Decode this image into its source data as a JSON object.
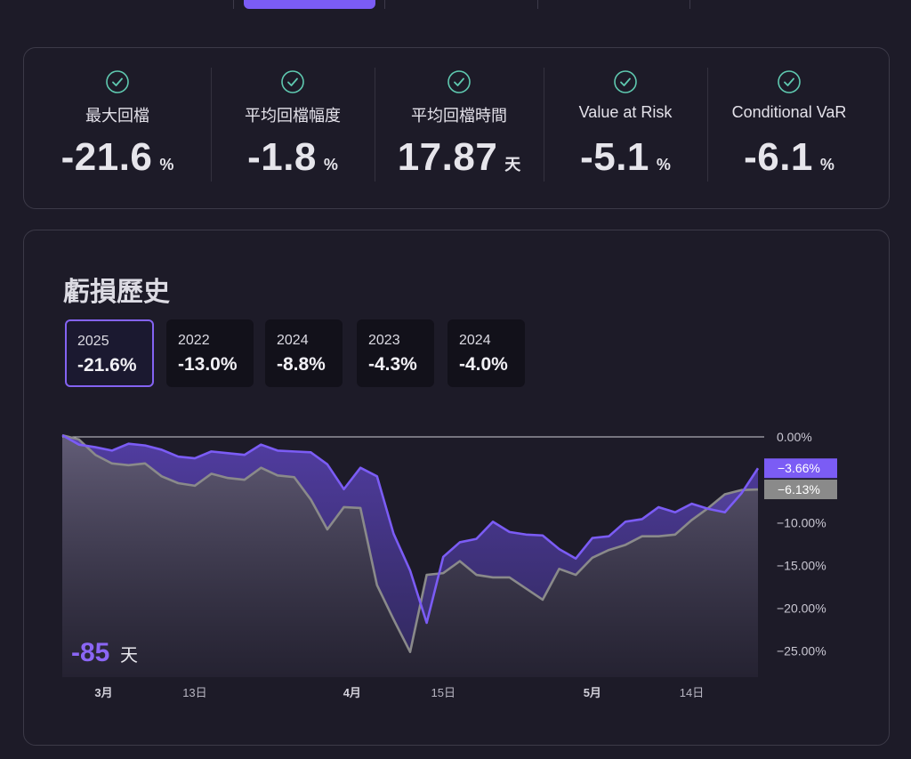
{
  "stats": [
    {
      "label": "最大回檔",
      "value": "-21.6",
      "unit": "%"
    },
    {
      "label": "平均回檔幅度",
      "value": "-1.8",
      "unit": "%"
    },
    {
      "label": "平均回檔時間",
      "value": "17.87",
      "unit": "天"
    },
    {
      "label": "Value at Risk",
      "value": "-5.1",
      "unit": "%"
    },
    {
      "label": "Conditional VaR",
      "value": "-6.1",
      "unit": "%"
    }
  ],
  "colors": {
    "primary": "#7b5cf5",
    "secondary": "#8a8a8a",
    "check": "#5fc9b0"
  },
  "chart_title": "虧損歷史",
  "periods": [
    {
      "year": "2025",
      "value": "-21.6%",
      "active": true
    },
    {
      "year": "2022",
      "value": "-13.0%",
      "active": false
    },
    {
      "year": "2024",
      "value": "-8.8%",
      "active": false
    },
    {
      "year": "2023",
      "value": "-4.3%",
      "active": false
    },
    {
      "year": "2024",
      "value": "-4.0%",
      "active": false
    }
  ],
  "chart_data": {
    "type": "line",
    "title": "虧損歷史",
    "ylim": [
      -27,
      0
    ],
    "yticks": [
      "0.00%",
      "−10.00%",
      "−15.00%",
      "−20.00%",
      "−25.00%"
    ],
    "ytick_values": [
      0,
      -10,
      -15,
      -20,
      -25
    ],
    "xticks": [
      {
        "label": "3月",
        "bold": true,
        "x": 2.5
      },
      {
        "label": "13日",
        "bold": false,
        "x": 8
      },
      {
        "label": "4月",
        "bold": true,
        "x": 17.5
      },
      {
        "label": "15日",
        "bold": false,
        "x": 23
      },
      {
        "label": "5月",
        "bold": true,
        "x": 32
      },
      {
        "label": "14日",
        "bold": false,
        "x": 38
      }
    ],
    "x": [
      0,
      1,
      2,
      3,
      4,
      5,
      6,
      7,
      8,
      9,
      10,
      11,
      12,
      13,
      14,
      15,
      16,
      17,
      18,
      19,
      20,
      21,
      22,
      23,
      24,
      25,
      26,
      27,
      28,
      29,
      30,
      31,
      32,
      33,
      34,
      35,
      36,
      37,
      38,
      39,
      40,
      41,
      42
    ],
    "series": [
      {
        "name": "",
        "end_label": "−3.66%",
        "values": [
          0.2,
          -0.9,
          -1.2,
          -1.6,
          -0.8,
          -1.0,
          -1.5,
          -2.3,
          -2.5,
          -1.7,
          -1.9,
          -2.1,
          -0.9,
          -1.6,
          -1.7,
          -1.8,
          -3.2,
          -6.1,
          -3.6,
          -4.6,
          -11.3,
          -15.6,
          -21.7,
          -14.0,
          -12.3,
          -11.9,
          -9.9,
          -11.1,
          -11.4,
          -11.5,
          -13.1,
          -14.2,
          -11.8,
          -11.6,
          -9.9,
          -9.6,
          -8.2,
          -8.8,
          -7.8,
          -8.4,
          -8.8,
          -6.6,
          -3.66
        ],
        "color": "#7b5cf5"
      },
      {
        "name": "",
        "end_label": "−6.13%",
        "values": [
          0.2,
          -0.3,
          -2.1,
          -3.1,
          -3.3,
          -3.1,
          -4.6,
          -5.4,
          -5.7,
          -4.3,
          -4.8,
          -5.0,
          -3.6,
          -4.5,
          -4.7,
          -7.3,
          -10.8,
          -8.2,
          -8.3,
          -17.3,
          -21.3,
          -25.1,
          -16.1,
          -15.9,
          -14.5,
          -16.1,
          -16.4,
          -16.4,
          -17.7,
          -19.0,
          -15.4,
          -16.1,
          -14.1,
          -13.2,
          -12.6,
          -11.6,
          -11.6,
          -11.4,
          -9.7,
          -8.3,
          -6.7,
          -6.2,
          -6.13
        ],
        "color": "#8a8a8a"
      }
    ],
    "annotation": {
      "value": "-85",
      "unit": "天"
    }
  }
}
